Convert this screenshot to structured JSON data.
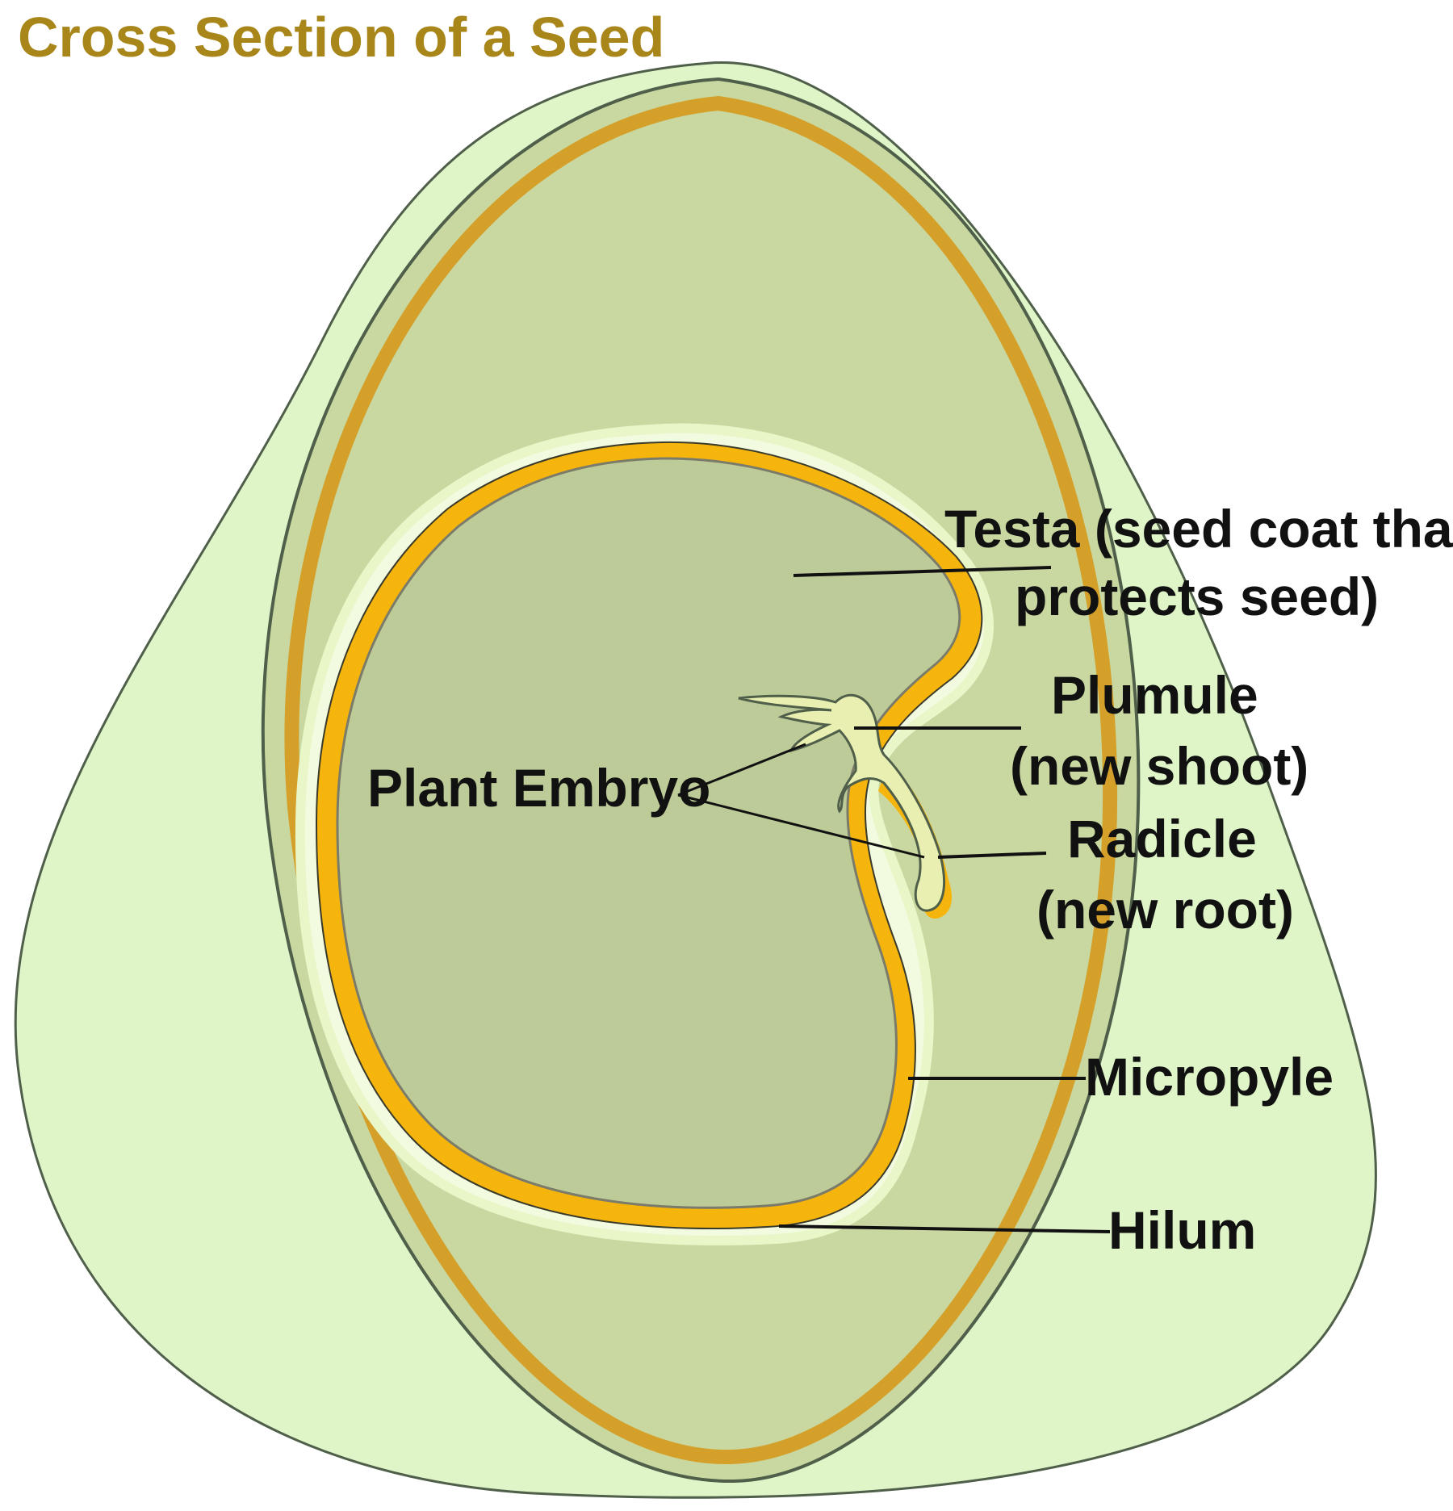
{
  "title": "Cross Section of a Seed",
  "labels": {
    "testa_line1": "Testa (seed coat that",
    "testa_line2": "protects seed)",
    "plumule_line1": "Plumule",
    "plumule_line2": "(new shoot)",
    "radicle_line1": "Radicle",
    "radicle_line2": "(new root)",
    "micropyle": "Micropyle",
    "hilum": "Hilum",
    "plant_embryo": "Plant Embryo"
  },
  "colors": {
    "title": "#a8861a",
    "outer_fruit": "#dff5c8",
    "seed_body": "#c8d8a0",
    "seed_band": "#d4a02a",
    "cotyledon": "#bccb98",
    "testa": "#f5b50c",
    "embryo": "#e8efb0",
    "outline": "#4f5f4a"
  }
}
